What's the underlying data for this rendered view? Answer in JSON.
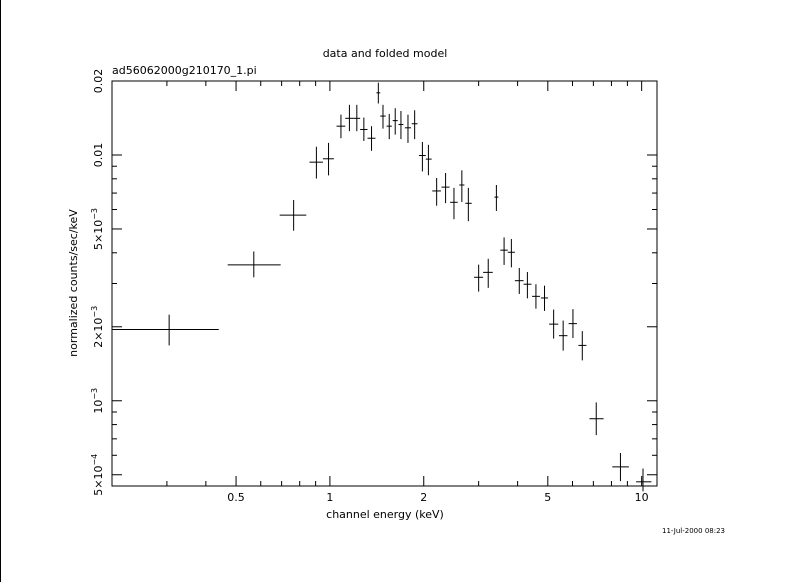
{
  "chart_data": {
    "type": "scatter",
    "title": "data and folded model",
    "subtitle": "ad56062000g210170_1.pi",
    "xlabel": "channel energy (keV)",
    "ylabel": "normalized counts/sec/keV",
    "timestamp": "11-Jul-2000 08:23",
    "x_scale": "log",
    "y_scale": "log",
    "xlim": [
      0.2,
      11.2
    ],
    "ylim": [
      0.00045,
      0.02
    ],
    "x_ticks": [
      {
        "value": 0.5,
        "label": "0.5"
      },
      {
        "value": 1,
        "label": "1"
      },
      {
        "value": 2,
        "label": "2"
      },
      {
        "value": 5,
        "label": "5"
      },
      {
        "value": 10,
        "label": "10"
      }
    ],
    "y_ticks": [
      {
        "value": 0.0005,
        "mantissa": "5×10",
        "exp": "−4"
      },
      {
        "value": 0.001,
        "mantissa": "10",
        "exp": "−3"
      },
      {
        "value": 0.002,
        "mantissa": "2×10",
        "exp": "−3"
      },
      {
        "value": 0.005,
        "mantissa": "5×10",
        "exp": "−3"
      },
      {
        "value": 0.01,
        "mantissa": "0.01",
        "exp": ""
      },
      {
        "value": 0.02,
        "mantissa": "0.02",
        "exp": ""
      }
    ],
    "grid": false,
    "series": [
      {
        "points": [
          {
            "x": 0.305,
            "xlo": 0.2,
            "xhi": 0.44,
            "y": 0.00195,
            "ylo": 0.00168,
            "yhi": 0.00224
          },
          {
            "x": 0.57,
            "xlo": 0.47,
            "xhi": 0.695,
            "y": 0.00357,
            "ylo": 0.00318,
            "yhi": 0.00405
          },
          {
            "x": 0.765,
            "xlo": 0.69,
            "xhi": 0.84,
            "y": 0.00569,
            "ylo": 0.00492,
            "yhi": 0.00656
          },
          {
            "x": 0.905,
            "xlo": 0.86,
            "xhi": 0.95,
            "y": 0.00935,
            "ylo": 0.00802,
            "yhi": 0.0108
          },
          {
            "x": 0.99,
            "xlo": 0.95,
            "xhi": 1.03,
            "y": 0.00965,
            "ylo": 0.00826,
            "yhi": 0.0112
          },
          {
            "x": 1.085,
            "xlo": 1.05,
            "xhi": 1.12,
            "y": 0.0131,
            "ylo": 0.0117,
            "yhi": 0.0146
          },
          {
            "x": 1.155,
            "xlo": 1.12,
            "xhi": 1.19,
            "y": 0.0141,
            "ylo": 0.0125,
            "yhi": 0.016
          },
          {
            "x": 1.22,
            "xlo": 1.19,
            "xhi": 1.25,
            "y": 0.0141,
            "ylo": 0.0125,
            "yhi": 0.016
          },
          {
            "x": 1.285,
            "xlo": 1.25,
            "xhi": 1.32,
            "y": 0.0127,
            "ylo": 0.0114,
            "yhi": 0.0142
          },
          {
            "x": 1.36,
            "xlo": 1.32,
            "xhi": 1.4,
            "y": 0.0117,
            "ylo": 0.0104,
            "yhi": 0.0131
          },
          {
            "x": 1.43,
            "xlo": 1.41,
            "xhi": 1.45,
            "y": 0.0179,
            "ylo": 0.0162,
            "yhi": 0.0197
          },
          {
            "x": 1.48,
            "xlo": 1.45,
            "xhi": 1.51,
            "y": 0.0144,
            "ylo": 0.0128,
            "yhi": 0.016
          },
          {
            "x": 1.55,
            "xlo": 1.52,
            "xhi": 1.58,
            "y": 0.0131,
            "ylo": 0.0116,
            "yhi": 0.0147
          },
          {
            "x": 1.62,
            "xlo": 1.59,
            "xhi": 1.65,
            "y": 0.0138,
            "ylo": 0.0121,
            "yhi": 0.0155
          },
          {
            "x": 1.69,
            "xlo": 1.66,
            "xhi": 1.72,
            "y": 0.0133,
            "ylo": 0.0116,
            "yhi": 0.0151
          },
          {
            "x": 1.78,
            "xlo": 1.74,
            "xhi": 1.82,
            "y": 0.0129,
            "ylo": 0.0112,
            "yhi": 0.0146
          },
          {
            "x": 1.87,
            "xlo": 1.83,
            "xhi": 1.91,
            "y": 0.0134,
            "ylo": 0.0116,
            "yhi": 0.0152
          },
          {
            "x": 1.98,
            "xlo": 1.93,
            "xhi": 2.03,
            "y": 0.00995,
            "ylo": 0.00857,
            "yhi": 0.0113
          },
          {
            "x": 2.07,
            "xlo": 2.03,
            "xhi": 2.12,
            "y": 0.00962,
            "ylo": 0.00827,
            "yhi": 0.011
          },
          {
            "x": 2.2,
            "xlo": 2.13,
            "xhi": 2.27,
            "y": 0.00714,
            "ylo": 0.00622,
            "yhi": 0.00806
          },
          {
            "x": 2.35,
            "xlo": 2.28,
            "xhi": 2.42,
            "y": 0.0074,
            "ylo": 0.00637,
            "yhi": 0.00845
          },
          {
            "x": 2.5,
            "xlo": 2.43,
            "xhi": 2.57,
            "y": 0.00642,
            "ylo": 0.00548,
            "yhi": 0.00735
          },
          {
            "x": 2.65,
            "xlo": 2.6,
            "xhi": 2.7,
            "y": 0.00755,
            "ylo": 0.00644,
            "yhi": 0.00866
          },
          {
            "x": 2.78,
            "xlo": 2.72,
            "xhi": 2.85,
            "y": 0.00636,
            "ylo": 0.00538,
            "yhi": 0.00735
          },
          {
            "x": 3.0,
            "xlo": 2.9,
            "xhi": 3.1,
            "y": 0.00318,
            "ylo": 0.00278,
            "yhi": 0.00358
          },
          {
            "x": 3.22,
            "xlo": 3.1,
            "xhi": 3.33,
            "y": 0.00333,
            "ylo": 0.00288,
            "yhi": 0.00378
          },
          {
            "x": 3.42,
            "xlo": 3.37,
            "xhi": 3.47,
            "y": 0.00674,
            "ylo": 0.00592,
            "yhi": 0.00755
          },
          {
            "x": 3.62,
            "xlo": 3.52,
            "xhi": 3.72,
            "y": 0.0041,
            "ylo": 0.00357,
            "yhi": 0.00462
          },
          {
            "x": 3.82,
            "xlo": 3.72,
            "xhi": 3.92,
            "y": 0.00402,
            "ylo": 0.00349,
            "yhi": 0.00455
          },
          {
            "x": 4.05,
            "xlo": 3.92,
            "xhi": 4.18,
            "y": 0.00308,
            "ylo": 0.00272,
            "yhi": 0.00347
          },
          {
            "x": 4.3,
            "xlo": 4.18,
            "xhi": 4.43,
            "y": 0.00298,
            "ylo": 0.00261,
            "yhi": 0.00334
          },
          {
            "x": 4.58,
            "xlo": 4.45,
            "xhi": 4.72,
            "y": 0.00266,
            "ylo": 0.00237,
            "yhi": 0.00298
          },
          {
            "x": 4.88,
            "xlo": 4.75,
            "xhi": 5.01,
            "y": 0.00262,
            "ylo": 0.00232,
            "yhi": 0.00294
          },
          {
            "x": 5.22,
            "xlo": 5.05,
            "xhi": 5.4,
            "y": 0.00205,
            "ylo": 0.00179,
            "yhi": 0.00235
          },
          {
            "x": 5.6,
            "xlo": 5.43,
            "xhi": 5.78,
            "y": 0.00184,
            "ylo": 0.0016,
            "yhi": 0.00212
          },
          {
            "x": 6.02,
            "xlo": 5.83,
            "xhi": 6.2,
            "y": 0.00206,
            "ylo": 0.0018,
            "yhi": 0.00236
          },
          {
            "x": 6.45,
            "xlo": 6.27,
            "xhi": 6.65,
            "y": 0.00168,
            "ylo": 0.00146,
            "yhi": 0.00192
          },
          {
            "x": 7.15,
            "xlo": 6.8,
            "xhi": 7.55,
            "y": 0.000845,
            "ylo": 0.000725,
            "yhi": 0.000985
          },
          {
            "x": 8.55,
            "xlo": 8.05,
            "xhi": 9.1,
            "y": 0.000538,
            "ylo": 0.000471,
            "yhi": 0.000613
          },
          {
            "x": 10.1,
            "xlo": 9.6,
            "xhi": 10.75,
            "y": 0.000468,
            "ylo": 0.000428,
            "yhi": 0.00053
          }
        ]
      }
    ]
  }
}
